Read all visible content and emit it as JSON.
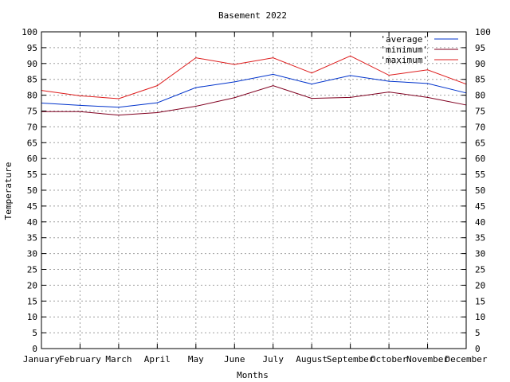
{
  "chart_data": {
    "type": "line",
    "title": "Basement 2022",
    "xlabel": "Months",
    "ylabel": "Temperature",
    "ylim": [
      0,
      100
    ],
    "ytick_step": 5,
    "grid": true,
    "legend_position": "top-right",
    "categories": [
      "January",
      "February",
      "March",
      "April",
      "May",
      "June",
      "July",
      "August",
      "September",
      "October",
      "November",
      "December"
    ],
    "series": [
      {
        "name": "'average'",
        "color": "#0033cc",
        "values": [
          77.5,
          76.8,
          76.2,
          77.6,
          82.4,
          84.2,
          86.6,
          83.5,
          86.2,
          84.4,
          83.7,
          80.7
        ]
      },
      {
        "name": "'minimum'",
        "color": "#800020",
        "values": [
          74.8,
          74.8,
          73.7,
          74.5,
          76.5,
          79.2,
          83.0,
          79.0,
          79.3,
          81.0,
          79.3,
          76.9
        ]
      },
      {
        "name": "'maximum'",
        "color": "#dd1c1c",
        "values": [
          81.5,
          79.8,
          78.9,
          83.0,
          91.8,
          89.7,
          91.8,
          87.0,
          92.4,
          86.3,
          88.0,
          83.5
        ]
      }
    ]
  }
}
